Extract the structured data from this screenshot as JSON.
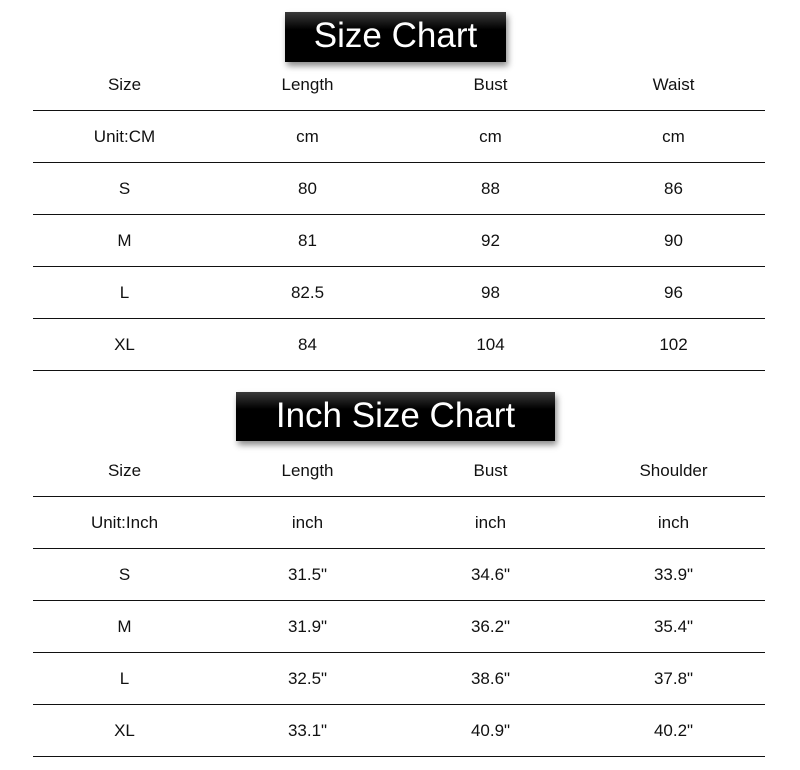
{
  "cm_chart": {
    "title": "Size Chart",
    "headers": [
      "Size",
      "Length",
      "Bust",
      "Waist"
    ],
    "rows": [
      [
        "Unit:CM",
        "cm",
        "cm",
        "cm"
      ],
      [
        "S",
        "80",
        "88",
        "86"
      ],
      [
        "M",
        "81",
        "92",
        "90"
      ],
      [
        "L",
        "82.5",
        "98",
        "96"
      ],
      [
        "XL",
        "84",
        "104",
        "102"
      ]
    ]
  },
  "inch_chart": {
    "title": "Inch Size Chart",
    "headers": [
      "Size",
      "Length",
      "Bust",
      "Shoulder"
    ],
    "rows": [
      [
        "Unit:Inch",
        "inch",
        "inch",
        "inch"
      ],
      [
        "S",
        "31.5\"",
        "34.6\"",
        "33.9\""
      ],
      [
        "M",
        "31.9\"",
        "36.2\"",
        "35.4\""
      ],
      [
        "L",
        "32.5\"",
        "38.6\"",
        "37.8\""
      ],
      [
        "XL",
        "33.1\"",
        "40.9\"",
        "40.2\""
      ]
    ]
  }
}
